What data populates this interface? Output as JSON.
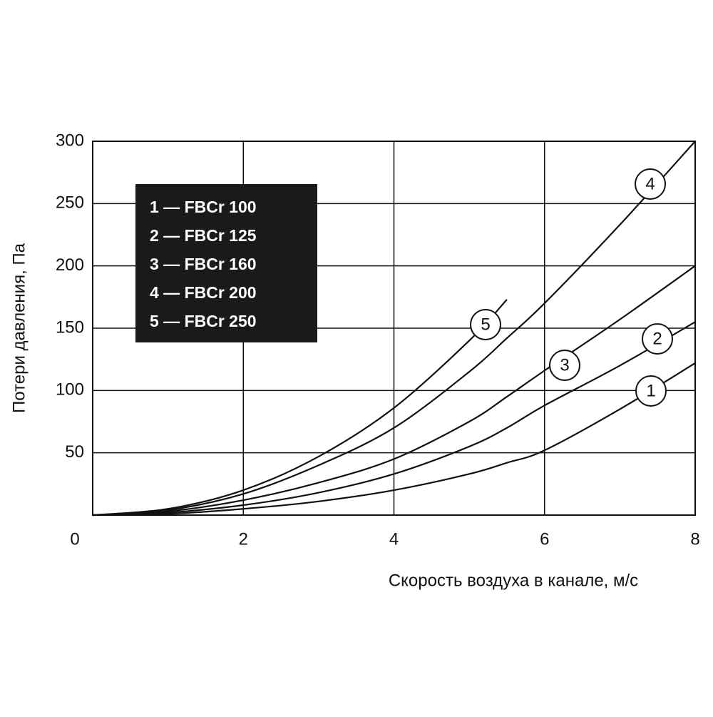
{
  "chart_data": {
    "type": "line",
    "x_label": "Скорость воздуха в канале, м/с",
    "y_label": "Потери давления, Па",
    "x": [
      0,
      1,
      2,
      3,
      4,
      5,
      5.5,
      6,
      7,
      8
    ],
    "series": [
      {
        "name": "1 — FBCr 100",
        "marker": "1",
        "color": "#111111",
        "values": [
          0,
          1,
          5,
          11,
          20,
          33,
          42,
          52,
          85,
          122
        ]
      },
      {
        "name": "2 — FBCr 125",
        "marker": "2",
        "color": "#111111",
        "values": [
          0,
          2,
          8,
          18,
          33,
          55,
          70,
          88,
          120,
          155
        ]
      },
      {
        "name": "3 — FBCr 160",
        "marker": "3",
        "color": "#111111",
        "values": [
          0,
          3,
          12,
          26,
          45,
          75,
          95,
          116,
          157,
          200
        ]
      },
      {
        "name": "4 — FBCr 200",
        "marker": "4",
        "color": "#111111",
        "values": [
          0,
          4,
          17,
          40,
          70,
          115,
          142,
          170,
          233,
          300
        ]
      },
      {
        "name": "5 — FBCr 250",
        "marker": "5",
        "color": "#111111",
        "values": [
          0,
          5,
          20,
          47,
          86,
          140,
          173,
          null,
          null,
          null
        ]
      }
    ],
    "xlim": [
      0,
      8
    ],
    "xticks": [
      0,
      2,
      4,
      6,
      8
    ],
    "ylim": [
      0,
      300
    ],
    "yticks": [
      50,
      100,
      150,
      200,
      250,
      300
    ],
    "grid": true
  }
}
